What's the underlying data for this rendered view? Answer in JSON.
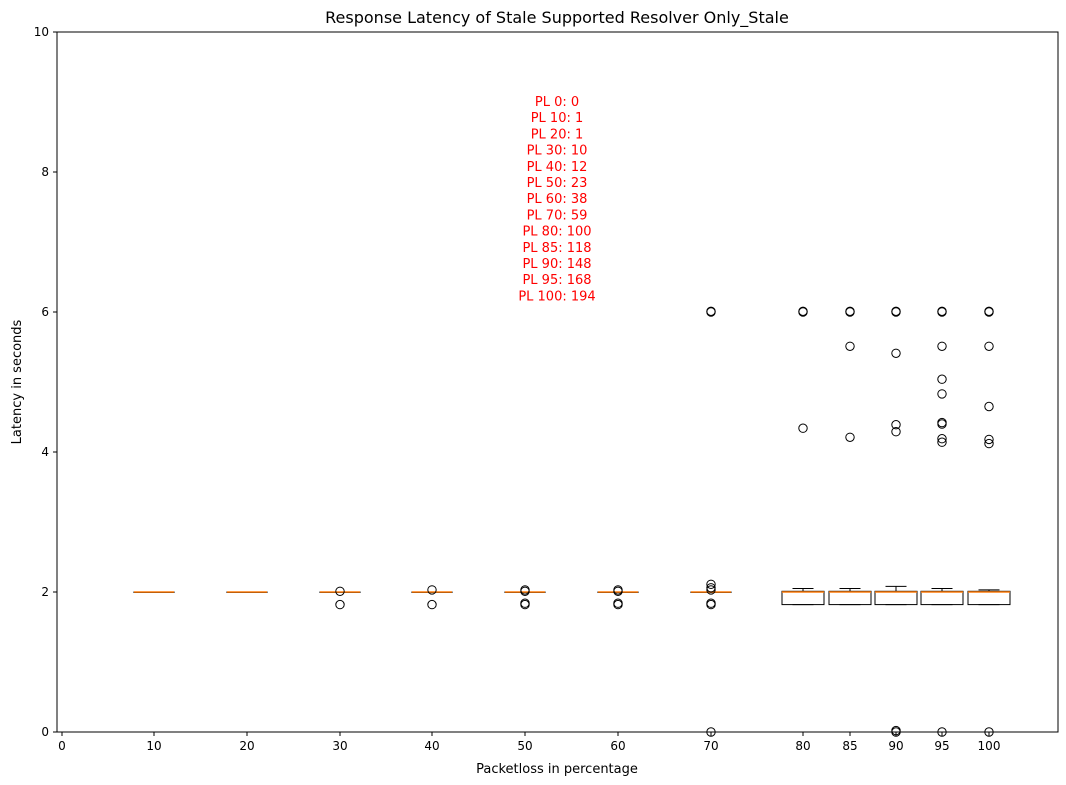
{
  "chart_data": {
    "type": "boxplot",
    "title": "Response Latency of Stale Supported Resolver Only_Stale",
    "xlabel": "Packetloss in percentage",
    "ylabel": "Latency in seconds",
    "ylim": [
      0,
      10
    ],
    "yticks": [
      0,
      2,
      4,
      6,
      8,
      10
    ],
    "xticks": [
      0,
      10,
      20,
      30,
      40,
      50,
      60,
      70,
      80,
      85,
      90,
      95,
      100
    ],
    "grid": false,
    "annotation_lines": [
      "PL 0: 0",
      "PL 10: 1",
      "PL 20: 1",
      "PL 30: 10",
      "PL 40: 12",
      "PL 50: 23",
      "PL 60: 38",
      "PL 70: 59",
      "PL 80: 100",
      "PL 85: 118",
      "PL 90: 148",
      "PL 95: 168",
      "PL 100: 194"
    ],
    "annotation_color": "#ff0000",
    "box_edge_color": "#000000",
    "median_color": "#ff7f0e",
    "boxes": [
      {
        "x": 10,
        "q1": 2.0,
        "median": 2.0,
        "q3": 2.0,
        "whislo": 2.0,
        "whishi": 2.0,
        "fliers": []
      },
      {
        "x": 20,
        "q1": 2.0,
        "median": 2.0,
        "q3": 2.0,
        "whislo": 2.0,
        "whishi": 2.0,
        "fliers": []
      },
      {
        "x": 30,
        "q1": 2.0,
        "median": 2.0,
        "q3": 2.0,
        "whislo": 2.0,
        "whishi": 2.0,
        "fliers": [
          1.82,
          2.01
        ]
      },
      {
        "x": 40,
        "q1": 2.0,
        "median": 2.0,
        "q3": 2.0,
        "whislo": 2.0,
        "whishi": 2.0,
        "fliers": [
          1.82,
          2.03
        ]
      },
      {
        "x": 50,
        "q1": 2.0,
        "median": 2.0,
        "q3": 2.0,
        "whislo": 2.0,
        "whishi": 2.0,
        "fliers": [
          1.82,
          1.84,
          2.01,
          2.03
        ]
      },
      {
        "x": 60,
        "q1": 2.0,
        "median": 2.0,
        "q3": 2.0,
        "whislo": 2.0,
        "whishi": 2.0,
        "fliers": [
          1.82,
          1.84,
          2.01,
          2.03
        ]
      },
      {
        "x": 70,
        "q1": 2.0,
        "median": 2.0,
        "q3": 2.0,
        "whislo": 2.0,
        "whishi": 2.0,
        "fliers": [
          0.0,
          1.82,
          1.84,
          2.03,
          2.06,
          2.11,
          6.0,
          6.01
        ]
      },
      {
        "x": 80,
        "q1": 1.82,
        "median": 2.0,
        "q3": 2.01,
        "whislo": 1.82,
        "whishi": 2.05,
        "fliers": [
          4.34,
          6.0,
          6.01
        ]
      },
      {
        "x": 85,
        "q1": 1.82,
        "median": 2.0,
        "q3": 2.01,
        "whislo": 1.82,
        "whishi": 2.05,
        "fliers": [
          4.21,
          5.51,
          6.0,
          6.01
        ]
      },
      {
        "x": 90,
        "q1": 1.82,
        "median": 2.0,
        "q3": 2.01,
        "whislo": 1.82,
        "whishi": 2.08,
        "fliers": [
          0.0,
          0.02,
          4.29,
          4.39,
          5.41,
          6.0,
          6.01
        ]
      },
      {
        "x": 95,
        "q1": 1.82,
        "median": 2.0,
        "q3": 2.01,
        "whislo": 1.82,
        "whishi": 2.05,
        "fliers": [
          0.0,
          4.14,
          4.19,
          4.4,
          4.42,
          4.83,
          5.04,
          5.51,
          6.0,
          6.01
        ]
      },
      {
        "x": 100,
        "q1": 1.82,
        "median": 2.0,
        "q3": 2.01,
        "whislo": 1.82,
        "whishi": 2.03,
        "fliers": [
          0.0,
          4.12,
          4.18,
          4.65,
          5.51,
          6.0,
          6.01
        ]
      }
    ]
  }
}
